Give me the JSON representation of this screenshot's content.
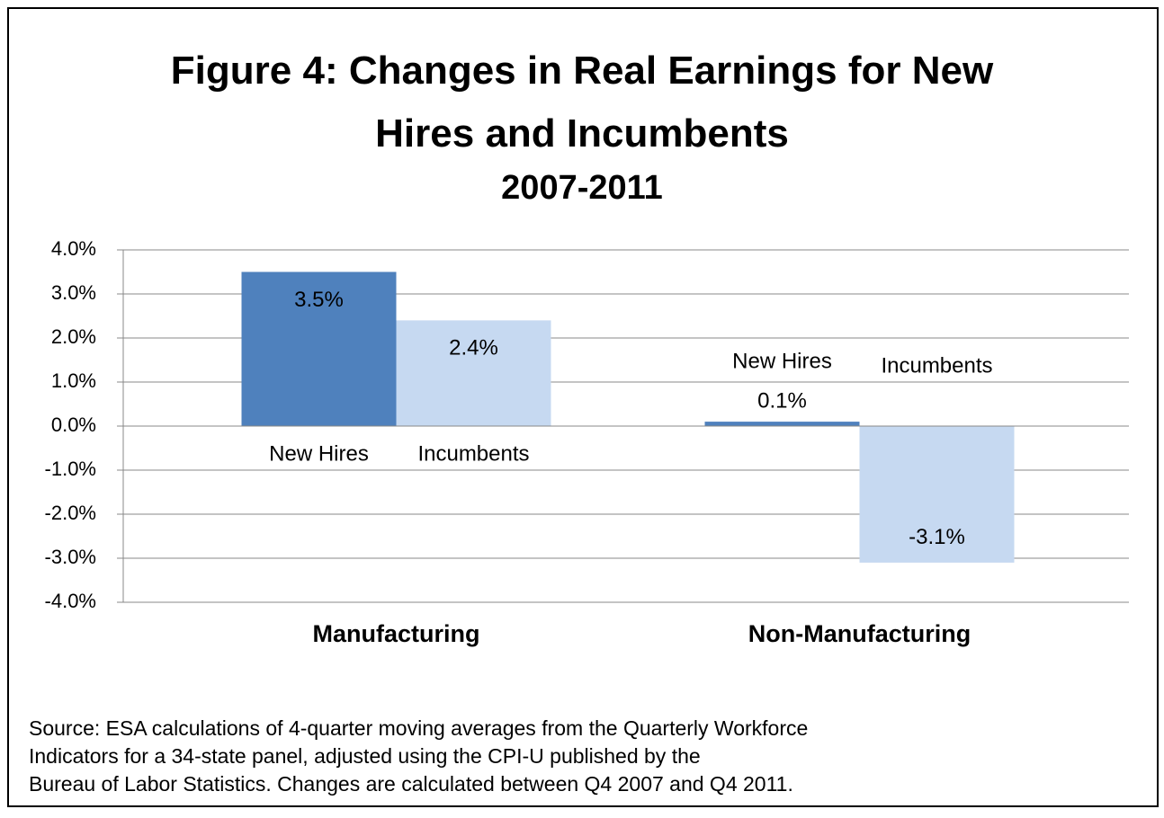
{
  "chart_data": {
    "type": "bar",
    "title": "Figure 4: Changes in Real Earnings for New Hires and Incumbents",
    "subtitle": "2007-2011",
    "categories": [
      "Manufacturing",
      "Non-Manufacturing"
    ],
    "series": [
      {
        "name": "New Hires",
        "color": "#4f81bd",
        "values": [
          3.5,
          0.1
        ],
        "value_labels": [
          "3.5%",
          "0.1%"
        ]
      },
      {
        "name": "Incumbents",
        "color": "#c6d9f1",
        "values": [
          2.4,
          -3.1
        ],
        "value_labels": [
          "2.4%",
          "-3.1%"
        ]
      }
    ],
    "ylim": [
      -4,
      4
    ],
    "yticks": [
      {
        "value": 4,
        "label": "4.0%"
      },
      {
        "value": 3,
        "label": "3.0%"
      },
      {
        "value": 2,
        "label": "2.0%"
      },
      {
        "value": 1,
        "label": "1.0%"
      },
      {
        "value": 0,
        "label": "0.0%"
      },
      {
        "value": -1,
        "label": "-1.0%"
      },
      {
        "value": -2,
        "label": "-2.0%"
      },
      {
        "value": -3,
        "label": "-3.0%"
      },
      {
        "value": -4,
        "label": "-4.0%"
      }
    ],
    "grid": true,
    "source": [
      "Source:  ESA calculations of  4-quarter moving averages from the Quarterly Workforce",
      "Indicators for a 34-state panel, adjusted using the CPI-U published by the",
      "Bureau of Labor Statistics.  Changes are calculated between Q4 2007 and Q4 2011."
    ]
  }
}
